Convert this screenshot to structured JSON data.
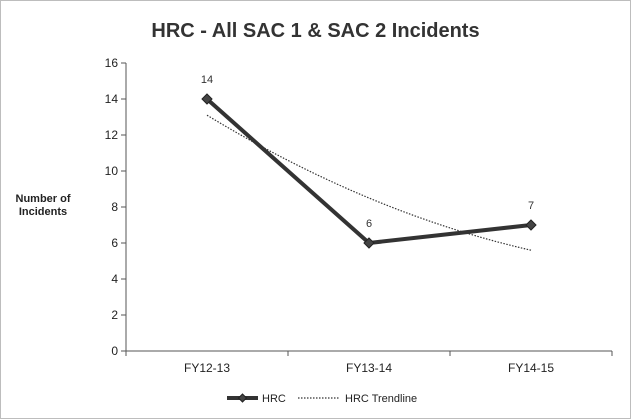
{
  "chart_data": {
    "type": "line",
    "title": "HRC - All SAC 1 & SAC 2 Incidents",
    "xlabel": "",
    "ylabel": "Number of Incidents",
    "ylabel_lines": [
      "Number of",
      "Incidents"
    ],
    "categories": [
      "FY12-13",
      "FY13-14",
      "FY14-15"
    ],
    "ylim": [
      0,
      16
    ],
    "yticks": [
      0,
      2,
      4,
      6,
      8,
      10,
      12,
      14,
      16
    ],
    "grid": false,
    "legend_position": "bottom",
    "series": [
      {
        "name": "HRC",
        "values": [
          14,
          6,
          7
        ],
        "data_labels": [
          "14",
          "6",
          "7"
        ],
        "color": "#333333",
        "marker": "diamond"
      },
      {
        "name": "HRC Trendline",
        "values": [
          13.1,
          8.5,
          5.6
        ],
        "style": "dotted",
        "color": "#333333"
      }
    ]
  }
}
